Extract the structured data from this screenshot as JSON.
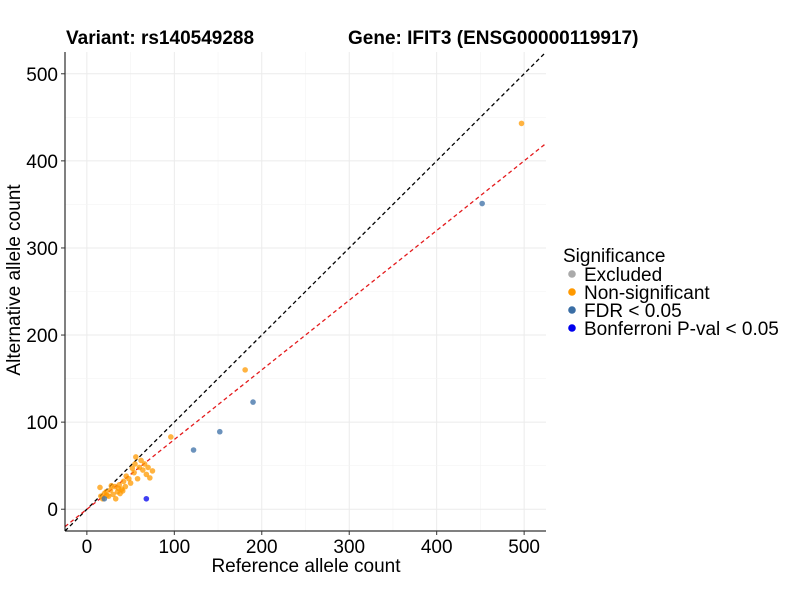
{
  "chart_data": {
    "type": "scatter",
    "title_left": "Variant: rs140549288",
    "title_right": "Gene: IFIT3 (ENSG00000119917)",
    "xlabel": "Reference allele count",
    "ylabel": "Alternative allele count",
    "xlim": [
      -25,
      525
    ],
    "ylim": [
      -25,
      525
    ],
    "x_ticks": [
      0,
      100,
      200,
      300,
      400,
      500
    ],
    "y_ticks": [
      0,
      100,
      200,
      300,
      400,
      500
    ],
    "grid": true,
    "lines": [
      {
        "name": "identity",
        "slope": 1,
        "intercept": 0,
        "color": "#000000",
        "dash": "dashed"
      },
      {
        "name": "fit",
        "slope": 0.8,
        "intercept": 0,
        "color": "#e41a1c",
        "dash": "dashed"
      }
    ],
    "legend": {
      "title": "Significance",
      "position": "right",
      "entries": [
        {
          "label": "Excluded",
          "color": "#aaaaaa"
        },
        {
          "label": "Non-significant",
          "color": "#ff9900"
        },
        {
          "label": "FDR < 0.05",
          "color": "#3a6ea5"
        },
        {
          "label": "Bonferroni P-val < 0.05",
          "color": "#0000ee"
        }
      ]
    },
    "series": [
      {
        "name": "Non-significant",
        "color": "#ff9900",
        "points": [
          [
            497,
            443
          ],
          [
            181,
            160
          ],
          [
            96,
            83
          ],
          [
            15,
            25
          ],
          [
            18,
            12
          ],
          [
            20,
            18
          ],
          [
            22,
            20
          ],
          [
            25,
            15
          ],
          [
            27,
            22
          ],
          [
            28,
            27
          ],
          [
            30,
            17
          ],
          [
            32,
            26
          ],
          [
            33,
            12
          ],
          [
            35,
            20
          ],
          [
            37,
            28
          ],
          [
            38,
            18
          ],
          [
            40,
            23
          ],
          [
            42,
            32
          ],
          [
            44,
            26
          ],
          [
            45,
            38
          ],
          [
            48,
            35
          ],
          [
            50,
            30
          ],
          [
            52,
            47
          ],
          [
            54,
            42
          ],
          [
            55,
            52
          ],
          [
            56,
            60
          ],
          [
            58,
            35
          ],
          [
            60,
            48
          ],
          [
            62,
            56
          ],
          [
            64,
            45
          ],
          [
            66,
            52
          ],
          [
            68,
            40
          ],
          [
            70,
            48
          ],
          [
            72,
            36
          ],
          [
            75,
            44
          ],
          [
            16,
            15
          ],
          [
            23,
            16
          ],
          [
            36,
            24
          ],
          [
            41,
            21
          ]
        ]
      },
      {
        "name": "FDR < 0.05",
        "color": "#3a6ea5",
        "points": [
          [
            452,
            351
          ],
          [
            190,
            123
          ],
          [
            152,
            89
          ],
          [
            122,
            68
          ],
          [
            20,
            12
          ]
        ]
      },
      {
        "name": "Bonferroni P-val < 0.05",
        "color": "#0000ee",
        "points": [
          [
            68,
            12
          ]
        ]
      }
    ]
  }
}
